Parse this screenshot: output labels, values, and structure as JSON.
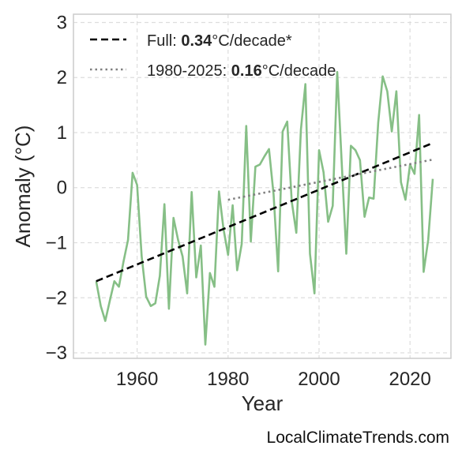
{
  "chart_data": {
    "type": "line",
    "xlabel": "Year",
    "ylabel": "Anomaly (°C)",
    "xlim": [
      1946,
      2029
    ],
    "ylim": [
      -3.1,
      3.15
    ],
    "xticks": [
      1960,
      1980,
      2000,
      2020
    ],
    "yticks": [
      -3,
      -2,
      -1,
      0,
      1,
      2,
      3
    ],
    "ytick_labels": [
      "−3",
      "−2",
      "−1",
      "0",
      "1",
      "2",
      "3"
    ],
    "grid": true,
    "legend_position": "top-left",
    "series": [
      {
        "style": "solid",
        "color": "#86bf86",
        "x": [
          1951,
          1952,
          1953,
          1954,
          1955,
          1956,
          1957,
          1958,
          1959,
          1960,
          1961,
          1962,
          1963,
          1964,
          1965,
          1966,
          1967,
          1968,
          1969,
          1970,
          1971,
          1972,
          1973,
          1974,
          1975,
          1976,
          1977,
          1978,
          1979,
          1980,
          1981,
          1982,
          1983,
          1984,
          1985,
          1986,
          1987,
          1988,
          1989,
          1990,
          1991,
          1992,
          1993,
          1994,
          1995,
          1996,
          1997,
          1998,
          1999,
          2000,
          2001,
          2002,
          2003,
          2004,
          2005,
          2006,
          2007,
          2008,
          2009,
          2010,
          2011,
          2012,
          2013,
          2014,
          2015,
          2016,
          2017,
          2018,
          2019,
          2020,
          2021,
          2022,
          2023,
          2024,
          2025
        ],
        "values": [
          -1.7,
          -2.15,
          -2.42,
          -2.05,
          -1.7,
          -1.8,
          -1.35,
          -0.95,
          0.27,
          0.05,
          -1.25,
          -1.98,
          -2.15,
          -2.1,
          -1.6,
          -0.3,
          -2.2,
          -0.55,
          -0.95,
          -1.25,
          -1.92,
          -0.08,
          -1.63,
          -1.05,
          -2.85,
          -1.55,
          -1.8,
          -0.07,
          -0.75,
          -1.22,
          -0.32,
          -1.5,
          -1.02,
          1.12,
          -0.98,
          0.38,
          0.42,
          0.57,
          0.7,
          -0.12,
          -1.52,
          1.02,
          1.2,
          -0.25,
          -0.82,
          1.05,
          1.88,
          -1.2,
          -1.92,
          0.68,
          0.28,
          -0.62,
          -0.33,
          2.1,
          0.42,
          -1.2,
          0.76,
          0.68,
          0.5,
          -0.53,
          -0.18,
          -0.2,
          1.18,
          2.02,
          1.75,
          1.02,
          1.75,
          0.1,
          -0.22,
          0.42,
          0.25,
          1.32,
          -1.53,
          -0.95,
          0.16
        ]
      },
      {
        "name_prefix": "Full: ",
        "name_value": "0.34",
        "name_suffix": "°C/decade*",
        "style": "dashed",
        "color": "#000000",
        "x": [
          1951,
          2025
        ],
        "values": [
          -1.7,
          0.81
        ]
      },
      {
        "name_prefix": "1980-2025: ",
        "name_value": "0.16",
        "name_suffix": "°C/decade",
        "style": "dotted",
        "color": "#808080",
        "x": [
          1980,
          2025
        ],
        "values": [
          -0.22,
          0.51
        ]
      }
    ]
  },
  "credit": "LocalClimateTrends.com"
}
